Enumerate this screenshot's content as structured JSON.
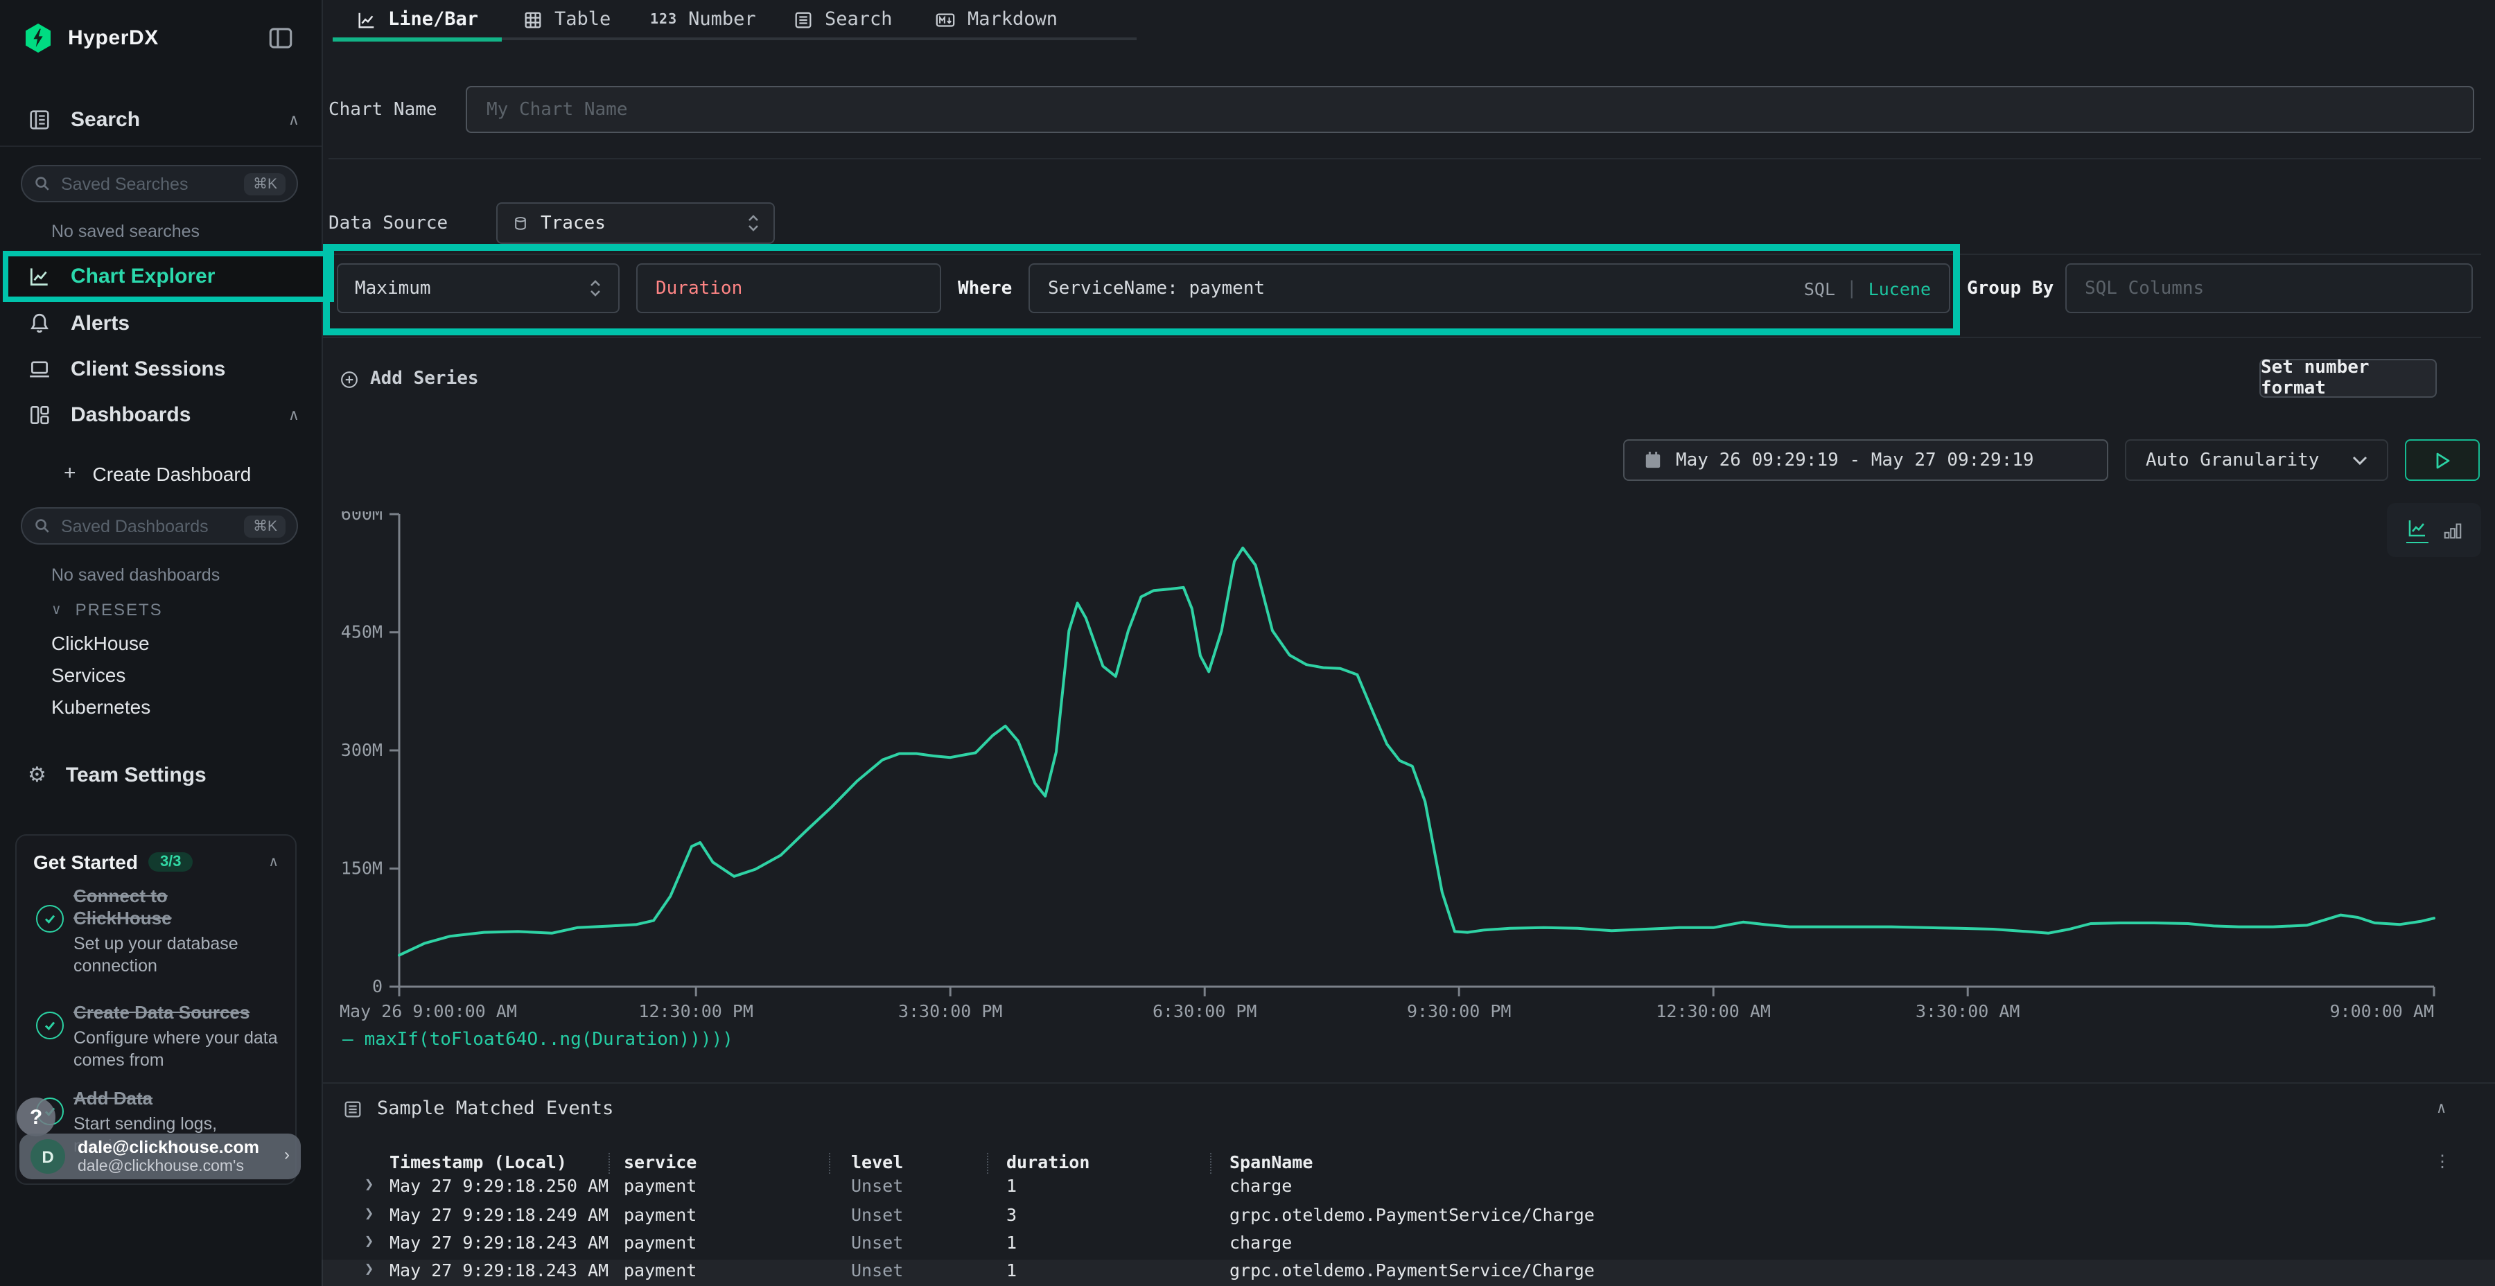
{
  "brand": {
    "name": "HyperDX"
  },
  "sidebar": {
    "search_section": "Search",
    "saved_searches_placeholder": "Saved Searches",
    "shortcut": "⌘K",
    "no_saved_searches": "No saved searches",
    "nav_chart_explorer": "Chart Explorer",
    "nav_alerts": "Alerts",
    "nav_client_sessions": "Client Sessions",
    "nav_dashboards": "Dashboards",
    "create_dashboard_plus": "+",
    "create_dashboard": "Create Dashboard",
    "saved_dashboards_placeholder": "Saved Dashboards",
    "no_saved_dashboards": "No saved dashboards",
    "presets_label": "PRESETS",
    "presets": [
      "ClickHouse",
      "Services",
      "Kubernetes"
    ],
    "team_settings": "Team Settings",
    "get_started": {
      "title": "Get Started",
      "badge": "3/3",
      "items": [
        {
          "title": "Connect to ClickHouse",
          "desc": "Set up your database connection"
        },
        {
          "title": "Create Data Sources",
          "desc": "Configure where your data comes from"
        },
        {
          "title": "Add Data",
          "desc": "Start sending logs, metrics, or traces"
        }
      ]
    },
    "help_button": "?",
    "user": {
      "avatar_initial": "D",
      "email": "dale@clickhouse.com",
      "org": "dale@clickhouse.com's"
    }
  },
  "tabs": [
    {
      "label": "Line/Bar",
      "active": true
    },
    {
      "label": "Table",
      "active": false
    },
    {
      "label": "Number",
      "active": false
    },
    {
      "label": "Search",
      "active": false
    },
    {
      "label": "Markdown",
      "active": false
    }
  ],
  "form": {
    "chart_name_label": "Chart Name",
    "chart_name_placeholder": "My Chart Name",
    "data_source_label": "Data Source",
    "data_source_value": "Traces",
    "aggregation": "Maximum",
    "field": "Duration",
    "where_label": "Where",
    "where_value": "ServiceName: payment",
    "sql_toggle": "SQL",
    "lucene_toggle": "Lucene",
    "group_by_label": "Group By",
    "group_by_placeholder": "SQL Columns",
    "add_series": "Add Series",
    "set_number_format": "Set number format"
  },
  "toolbar": {
    "date_range": "May 26 09:29:19 - May 27 09:29:19",
    "granularity": "Auto Granularity"
  },
  "chart_data": {
    "type": "line",
    "title": "",
    "xlabel": "",
    "ylabel": "",
    "grid": false,
    "legend_position": "bottom-left",
    "ylim_millions": [
      0,
      600
    ],
    "x_hours_range": [
      0,
      24
    ],
    "y_ticks": [
      {
        "v": 0,
        "label": "0"
      },
      {
        "v": 150,
        "label": "150M"
      },
      {
        "v": 300,
        "label": "300M"
      },
      {
        "v": 450,
        "label": "450M"
      },
      {
        "v": 600,
        "label": "600M"
      }
    ],
    "x_ticks": [
      {
        "h": 0,
        "label": "May 26 9:00:00 AM"
      },
      {
        "h": 3.5,
        "label": "12:30:00 PM"
      },
      {
        "h": 6.5,
        "label": "3:30:00 PM"
      },
      {
        "h": 9.5,
        "label": "6:30:00 PM"
      },
      {
        "h": 12.5,
        "label": "9:30:00 PM"
      },
      {
        "h": 15.5,
        "label": "12:30:00 AM"
      },
      {
        "h": 18.5,
        "label": "3:30:00 AM"
      },
      {
        "h": 24,
        "label": "9:00:00 AM"
      }
    ],
    "series": [
      {
        "name": "maxIf(toFloat64O..ng(Duration)))))",
        "color": "#2fd3a5",
        "points_hours_vs_millions": [
          [
            0,
            40
          ],
          [
            0.3,
            55
          ],
          [
            0.6,
            64
          ],
          [
            1,
            69
          ],
          [
            1.4,
            70
          ],
          [
            1.8,
            68
          ],
          [
            2.1,
            75
          ],
          [
            2.5,
            77
          ],
          [
            2.8,
            79
          ],
          [
            3.0,
            84
          ],
          [
            3.2,
            115
          ],
          [
            3.45,
            178
          ],
          [
            3.55,
            183
          ],
          [
            3.7,
            158
          ],
          [
            3.95,
            140
          ],
          [
            4.2,
            149
          ],
          [
            4.5,
            167
          ],
          [
            4.8,
            198
          ],
          [
            5.1,
            228
          ],
          [
            5.4,
            261
          ],
          [
            5.7,
            288
          ],
          [
            5.9,
            296
          ],
          [
            6.1,
            296
          ],
          [
            6.3,
            293
          ],
          [
            6.5,
            291
          ],
          [
            6.8,
            297
          ],
          [
            7.0,
            319
          ],
          [
            7.15,
            331
          ],
          [
            7.3,
            312
          ],
          [
            7.5,
            258
          ],
          [
            7.62,
            242
          ],
          [
            7.75,
            298
          ],
          [
            7.9,
            452
          ],
          [
            8.0,
            487
          ],
          [
            8.1,
            468
          ],
          [
            8.3,
            407
          ],
          [
            8.45,
            394
          ],
          [
            8.6,
            452
          ],
          [
            8.75,
            495
          ],
          [
            8.9,
            503
          ],
          [
            9.1,
            505
          ],
          [
            9.25,
            507
          ],
          [
            9.35,
            480
          ],
          [
            9.45,
            420
          ],
          [
            9.55,
            400
          ],
          [
            9.7,
            452
          ],
          [
            9.85,
            540
          ],
          [
            9.95,
            557
          ],
          [
            10.1,
            535
          ],
          [
            10.3,
            452
          ],
          [
            10.5,
            421
          ],
          [
            10.7,
            409
          ],
          [
            10.9,
            405
          ],
          [
            11.1,
            404
          ],
          [
            11.3,
            396
          ],
          [
            11.5,
            345
          ],
          [
            11.65,
            308
          ],
          [
            11.8,
            287
          ],
          [
            11.95,
            280
          ],
          [
            12.1,
            235
          ],
          [
            12.3,
            120
          ],
          [
            12.45,
            70
          ],
          [
            12.6,
            69
          ],
          [
            12.8,
            72
          ],
          [
            13.1,
            74
          ],
          [
            13.5,
            75
          ],
          [
            13.9,
            74
          ],
          [
            14.3,
            71
          ],
          [
            14.7,
            73
          ],
          [
            15.1,
            75
          ],
          [
            15.5,
            75
          ],
          [
            15.85,
            82
          ],
          [
            16.1,
            79
          ],
          [
            16.4,
            76
          ],
          [
            16.8,
            76
          ],
          [
            17.2,
            76
          ],
          [
            17.6,
            76
          ],
          [
            18,
            75
          ],
          [
            18.4,
            74
          ],
          [
            18.8,
            73
          ],
          [
            19.2,
            70
          ],
          [
            19.45,
            68
          ],
          [
            19.7,
            73
          ],
          [
            19.95,
            80
          ],
          [
            20.3,
            81
          ],
          [
            20.7,
            81
          ],
          [
            21.1,
            80
          ],
          [
            21.4,
            77
          ],
          [
            21.7,
            76
          ],
          [
            22.1,
            76
          ],
          [
            22.5,
            78
          ],
          [
            22.9,
            91
          ],
          [
            23.1,
            88
          ],
          [
            23.3,
            81
          ],
          [
            23.6,
            79
          ],
          [
            23.85,
            83
          ],
          [
            24,
            87
          ]
        ]
      }
    ]
  },
  "events": {
    "title": "Sample Matched Events",
    "columns": [
      "Timestamp (Local)",
      "service",
      "level",
      "duration",
      "SpanName"
    ],
    "rows": [
      [
        "May 27 9:29:18.250 AM",
        "payment",
        "Unset",
        "1",
        "charge"
      ],
      [
        "May 27 9:29:18.249 AM",
        "payment",
        "Unset",
        "3",
        "grpc.oteldemo.PaymentService/Charge"
      ],
      [
        "May 27 9:29:18.243 AM",
        "payment",
        "Unset",
        "1",
        "charge"
      ],
      [
        "May 27 9:29:18.243 AM",
        "payment",
        "Unset",
        "1",
        "grpc.oteldemo.PaymentService/Charge"
      ]
    ]
  },
  "colors": {
    "accent_teal": "#16bf9d",
    "annotation_teal": "#00c3ab",
    "chart_line": "#2fd3a5",
    "duration_field_text": "#ff8585",
    "lucene_active": "#1dc5a0",
    "logo_green": "#00dc82",
    "tab_underline": "#12b387"
  }
}
